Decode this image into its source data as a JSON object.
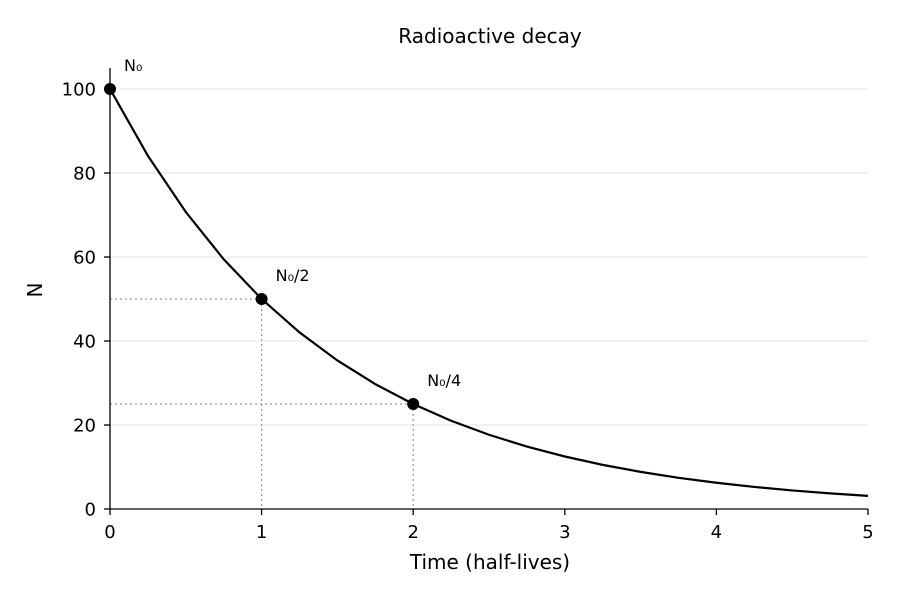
{
  "chart_data": {
    "type": "line",
    "title": "Radioactive decay",
    "xlabel": "Time (half-lives)",
    "ylabel": "N",
    "xlim": [
      0,
      5
    ],
    "ylim": [
      0,
      105
    ],
    "xticks": [
      0,
      1,
      2,
      3,
      4,
      5
    ],
    "yticks": [
      0,
      20,
      40,
      60,
      80,
      100
    ],
    "grid": "horizontal",
    "legend": "none",
    "line_color": "#000000",
    "guide_color": "#999999",
    "series": [
      {
        "x": [
          0,
          0.25,
          0.5,
          0.75,
          1,
          1.25,
          1.5,
          1.75,
          2,
          2.25,
          2.5,
          2.75,
          3,
          3.25,
          3.5,
          3.75,
          4,
          4.25,
          4.5,
          4.75,
          5
        ],
        "values": [
          100,
          84.09,
          70.71,
          59.46,
          50,
          42.04,
          35.36,
          29.73,
          25,
          21.02,
          17.68,
          14.87,
          12.5,
          10.51,
          8.84,
          7.43,
          6.25,
          5.26,
          4.42,
          3.72,
          3.13
        ]
      }
    ],
    "annotations": [
      {
        "x": 0,
        "y": 100,
        "label": "N₀"
      },
      {
        "x": 1,
        "y": 50,
        "label": "N₀/2"
      },
      {
        "x": 2,
        "y": 25,
        "label": "N₀/4"
      }
    ]
  }
}
